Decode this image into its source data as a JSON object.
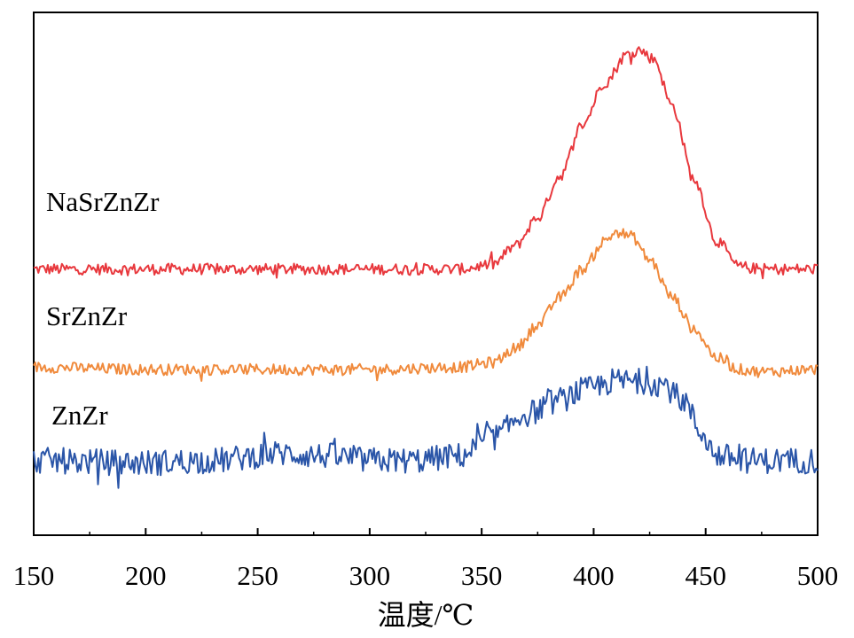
{
  "chart_data": {
    "type": "line",
    "title": "",
    "xlabel": "温度/℃",
    "ylabel": "",
    "xlim": [
      150,
      500
    ],
    "x_ticks": [
      150,
      200,
      250,
      300,
      350,
      400,
      450,
      500
    ],
    "x_tick_labels": [
      "150",
      "200",
      "250",
      "300",
      "350",
      "400",
      "450",
      "500"
    ],
    "y_ticks_shown": false,
    "grid": false,
    "legend": "none",
    "series": [
      {
        "name": "NaSrZnZr",
        "color": "#e8383d",
        "noise": 0.012,
        "points": [
          [
            150,
            0.55
          ],
          [
            200,
            0.55
          ],
          [
            250,
            0.55
          ],
          [
            300,
            0.55
          ],
          [
            340,
            0.55
          ],
          [
            355,
            0.56
          ],
          [
            365,
            0.6
          ],
          [
            375,
            0.66
          ],
          [
            385,
            0.75
          ],
          [
            395,
            0.86
          ],
          [
            405,
            0.95
          ],
          [
            415,
            1.01
          ],
          [
            420,
            1.02
          ],
          [
            427,
            1.0
          ],
          [
            435,
            0.9
          ],
          [
            445,
            0.74
          ],
          [
            455,
            0.61
          ],
          [
            465,
            0.555
          ],
          [
            475,
            0.55
          ],
          [
            500,
            0.55
          ]
        ]
      },
      {
        "name": "SrZnZr",
        "color": "#f08a3c",
        "noise": 0.012,
        "points": [
          [
            150,
            0.34
          ],
          [
            200,
            0.335
          ],
          [
            250,
            0.335
          ],
          [
            300,
            0.335
          ],
          [
            340,
            0.34
          ],
          [
            355,
            0.35
          ],
          [
            365,
            0.38
          ],
          [
            375,
            0.43
          ],
          [
            385,
            0.49
          ],
          [
            395,
            0.55
          ],
          [
            405,
            0.61
          ],
          [
            410,
            0.63
          ],
          [
            417,
            0.62
          ],
          [
            425,
            0.57
          ],
          [
            435,
            0.49
          ],
          [
            445,
            0.42
          ],
          [
            455,
            0.36
          ],
          [
            465,
            0.335
          ],
          [
            475,
            0.33
          ],
          [
            500,
            0.335
          ]
        ]
      },
      {
        "name": "ZnZr",
        "color": "#2a55a8",
        "noise": 0.028,
        "points": [
          [
            150,
            0.14
          ],
          [
            200,
            0.135
          ],
          [
            230,
            0.14
          ],
          [
            260,
            0.155
          ],
          [
            280,
            0.15
          ],
          [
            300,
            0.14
          ],
          [
            320,
            0.14
          ],
          [
            340,
            0.15
          ],
          [
            355,
            0.19
          ],
          [
            370,
            0.24
          ],
          [
            385,
            0.27
          ],
          [
            395,
            0.29
          ],
          [
            410,
            0.31
          ],
          [
            420,
            0.31
          ],
          [
            430,
            0.305
          ],
          [
            440,
            0.27
          ],
          [
            448,
            0.2
          ],
          [
            455,
            0.15
          ],
          [
            470,
            0.14
          ],
          [
            500,
            0.14
          ]
        ]
      }
    ]
  }
}
